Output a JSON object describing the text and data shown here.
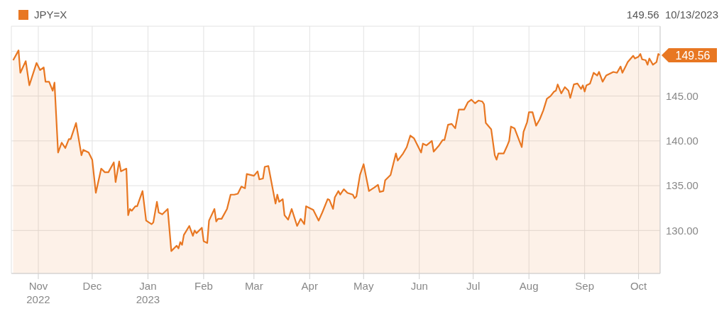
{
  "chart_data": {
    "type": "area",
    "legend": "top left",
    "grid": true,
    "annotations": [
      "149.56  10/13/2023",
      {
        "text": "149.56",
        "x": "2023-10-13",
        "y": 149.56
      }
    ],
    "xlim": [
      "2022-10-17",
      "2023-10-13"
    ],
    "xticks": [
      {
        "value": "2022-11-01",
        "label": "Nov\n2022"
      },
      {
        "value": "2022-12-01",
        "label": "Dec"
      },
      {
        "value": "2023-01-01",
        "label": "Jan\n2023"
      },
      {
        "value": "2023-02-01",
        "label": "Feb"
      },
      {
        "value": "2023-03-01",
        "label": "Mar"
      },
      {
        "value": "2023-04-01",
        "label": "Apr"
      },
      {
        "value": "2023-05-01",
        "label": "May"
      },
      {
        "value": "2023-06-01",
        "label": "Jun"
      },
      {
        "value": "2023-07-01",
        "label": "Jul"
      },
      {
        "value": "2023-08-01",
        "label": "Aug"
      },
      {
        "value": "2023-09-01",
        "label": "Sep"
      },
      {
        "value": "2023-10-01",
        "label": "Oct"
      }
    ],
    "ylim": [
      125.2,
      152.8
    ],
    "yticks": [
      {
        "value": 130,
        "label": "130.00"
      },
      {
        "value": 135,
        "label": "135.00"
      },
      {
        "value": 140,
        "label": "140.00"
      },
      {
        "value": 145,
        "label": "145.00"
      },
      {
        "value": 150,
        "label": null
      }
    ],
    "series": [
      {
        "name": "JPY=X",
        "color": "#e87722",
        "x": [
          "2022-10-18",
          "2022-10-21",
          "2022-10-22",
          "2022-10-25",
          "2022-10-27",
          "2022-10-31",
          "2022-11-02",
          "2022-11-04",
          "2022-11-05",
          "2022-11-07",
          "2022-11-09",
          "2022-11-10",
          "2022-11-12",
          "2022-11-14",
          "2022-11-16",
          "2022-11-18",
          "2022-11-19",
          "2022-11-22",
          "2022-11-25",
          "2022-11-26",
          "2022-11-29",
          "2022-12-01",
          "2022-12-03",
          "2022-12-06",
          "2022-12-08",
          "2022-12-10",
          "2022-12-13",
          "2022-12-14",
          "2022-12-16",
          "2022-12-17",
          "2022-12-20",
          "2022-12-21",
          "2022-12-22",
          "2022-12-23",
          "2022-12-25",
          "2022-12-26",
          "2022-12-29",
          "2022-12-31",
          "2023-01-03",
          "2023-01-04",
          "2023-01-06",
          "2023-01-07",
          "2023-01-09",
          "2023-01-12",
          "2023-01-14",
          "2023-01-17",
          "2023-01-18",
          "2023-01-19",
          "2023-01-20",
          "2023-01-21",
          "2023-01-24",
          "2023-01-26",
          "2023-01-27",
          "2023-01-28",
          "2023-01-31",
          "2023-02-01",
          "2023-02-03",
          "2023-02-04",
          "2023-02-07",
          "2023-02-08",
          "2023-02-09",
          "2023-02-11",
          "2023-02-14",
          "2023-02-16",
          "2023-02-18",
          "2023-02-20",
          "2023-02-22",
          "2023-02-24",
          "2023-02-25",
          "2023-03-01",
          "2023-03-03",
          "2023-03-04",
          "2023-03-06",
          "2023-03-07",
          "2023-03-09",
          "2023-03-13",
          "2023-03-14",
          "2023-03-15",
          "2023-03-17",
          "2023-03-18",
          "2023-03-20",
          "2023-03-22",
          "2023-03-25",
          "2023-03-27",
          "2023-03-29",
          "2023-03-30",
          "2023-04-01",
          "2023-04-03",
          "2023-04-06",
          "2023-04-08",
          "2023-04-11",
          "2023-04-12",
          "2023-04-14",
          "2023-04-15",
          "2023-04-17",
          "2023-04-18",
          "2023-04-20",
          "2023-04-22",
          "2023-04-25",
          "2023-04-26",
          "2023-04-27",
          "2023-04-29",
          "2023-05-01",
          "2023-05-04",
          "2023-05-07",
          "2023-05-09",
          "2023-05-10",
          "2023-05-12",
          "2023-05-13",
          "2023-05-16",
          "2023-05-19",
          "2023-05-20",
          "2023-05-23",
          "2023-05-25",
          "2023-05-27",
          "2023-05-29",
          "2023-06-02",
          "2023-06-03",
          "2023-06-05",
          "2023-06-08",
          "2023-06-09",
          "2023-06-12",
          "2023-06-14",
          "2023-06-15",
          "2023-06-17",
          "2023-06-19",
          "2023-06-21",
          "2023-06-23",
          "2023-06-26",
          "2023-06-28",
          "2023-06-30",
          "2023-07-02",
          "2023-07-04",
          "2023-07-06",
          "2023-07-07",
          "2023-07-08",
          "2023-07-11",
          "2023-07-13",
          "2023-07-14",
          "2023-07-15",
          "2023-07-18",
          "2023-07-20",
          "2023-07-21",
          "2023-07-22",
          "2023-07-24",
          "2023-07-28",
          "2023-07-29",
          "2023-07-31",
          "2023-08-01",
          "2023-08-03",
          "2023-08-05",
          "2023-08-07",
          "2023-08-09",
          "2023-08-11",
          "2023-08-13",
          "2023-08-15",
          "2023-08-16",
          "2023-08-17",
          "2023-08-19",
          "2023-08-21",
          "2023-08-23",
          "2023-08-24",
          "2023-08-26",
          "2023-08-28",
          "2023-08-30",
          "2023-08-31",
          "2023-09-01",
          "2023-09-02",
          "2023-09-04",
          "2023-09-06",
          "2023-09-08",
          "2023-09-09",
          "2023-09-11",
          "2023-09-13",
          "2023-09-15",
          "2023-09-17",
          "2023-09-19",
          "2023-09-21",
          "2023-09-22",
          "2023-09-24",
          "2023-09-25",
          "2023-09-28",
          "2023-09-29",
          "2023-10-01",
          "2023-10-02",
          "2023-10-03",
          "2023-10-05",
          "2023-10-06",
          "2023-10-07",
          "2023-10-09",
          "2023-10-11",
          "2023-10-12",
          "2023-10-13"
        ],
        "values": [
          149.0,
          150.1,
          147.6,
          148.9,
          146.2,
          148.7,
          147.9,
          148.2,
          146.6,
          146.6,
          145.6,
          146.5,
          138.7,
          139.8,
          139.2,
          140.2,
          140.2,
          142.0,
          138.4,
          139.0,
          138.7,
          137.9,
          134.2,
          136.9,
          136.5,
          136.5,
          137.6,
          135.4,
          137.7,
          136.6,
          136.9,
          131.7,
          132.4,
          132.2,
          132.7,
          132.7,
          134.4,
          131.1,
          130.7,
          130.9,
          133.2,
          132.0,
          131.8,
          132.4,
          127.7,
          128.3,
          128.0,
          128.7,
          128.4,
          129.5,
          130.5,
          129.4,
          130.0,
          129.7,
          130.3,
          128.8,
          128.6,
          131.1,
          132.4,
          131.0,
          131.3,
          131.3,
          132.4,
          134.0,
          134.0,
          134.1,
          134.9,
          134.7,
          136.3,
          136.1,
          136.6,
          135.7,
          135.8,
          137.1,
          137.2,
          133.0,
          134.0,
          133.2,
          133.5,
          131.7,
          131.2,
          132.4,
          130.5,
          131.3,
          130.7,
          132.7,
          132.5,
          132.3,
          131.1,
          132.0,
          133.5,
          133.4,
          132.4,
          133.7,
          134.4,
          134.0,
          134.6,
          134.2,
          134.0,
          133.6,
          133.8,
          136.2,
          137.4,
          134.4,
          134.8,
          135.1,
          134.3,
          134.4,
          135.6,
          136.2,
          138.6,
          137.8,
          138.6,
          139.3,
          140.6,
          140.3,
          138.7,
          139.7,
          139.5,
          140.0,
          138.8,
          139.5,
          140.1,
          140.1,
          141.8,
          141.9,
          141.4,
          143.5,
          143.5,
          144.3,
          144.6,
          144.2,
          144.5,
          144.4,
          144.1,
          142.0,
          141.3,
          138.4,
          137.9,
          138.6,
          138.6,
          139.5,
          140.0,
          141.6,
          141.4,
          139.3,
          141.0,
          142.1,
          143.2,
          143.2,
          141.7,
          142.4,
          143.4,
          144.7,
          145.0,
          145.5,
          145.6,
          146.3,
          145.3,
          146.0,
          145.6,
          144.8,
          146.3,
          146.4,
          145.8,
          146.2,
          145.5,
          146.2,
          146.4,
          147.6,
          147.3,
          147.7,
          146.6,
          147.3,
          147.5,
          147.7,
          147.6,
          148.3,
          147.6,
          148.4,
          148.8,
          149.5,
          149.2,
          149.4,
          149.7,
          149.1,
          149.0,
          148.5,
          149.2,
          148.5,
          148.8,
          149.7,
          149.56
        ]
      }
    ]
  }
}
